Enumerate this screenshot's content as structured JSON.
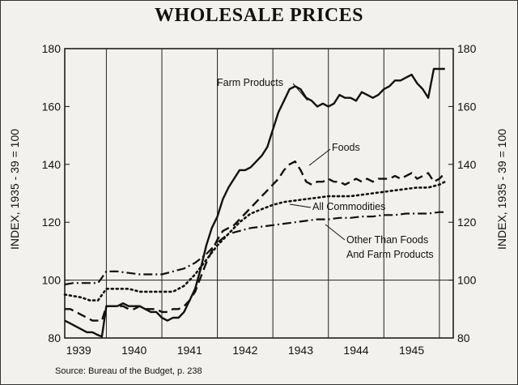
{
  "page_title": "WHOLESALE PRICES",
  "y_axis_label_left": "INDEX, 1935 - 39 = 100",
  "y_axis_label_right": "INDEX, 1935 - 39 = 100",
  "source": "Source: Bureau of the Budget, p. 238",
  "chart_data": {
    "type": "line",
    "title": "WHOLESALE PRICES",
    "xlabel": "",
    "ylabel": "INDEX, 1935 - 39 = 100",
    "ylim": [
      80,
      180
    ],
    "xlim": [
      1938.75,
      1945.75
    ],
    "yticks": [
      80,
      100,
      120,
      140,
      160,
      180
    ],
    "xtick_labels": [
      "1939",
      "1940",
      "1941",
      "1942",
      "1943",
      "1944",
      "1945"
    ],
    "grid": "vertical lines at year boundaries; horizontal line at 100",
    "legend": "inline annotations with leader lines",
    "series": [
      {
        "name": "Farm Products",
        "style": "solid",
        "x": [
          1938.75,
          1938.85,
          1938.95,
          1939.05,
          1939.15,
          1939.25,
          1939.35,
          1939.42,
          1939.5,
          1939.6,
          1939.7,
          1939.8,
          1939.9,
          1940.0,
          1940.1,
          1940.2,
          1940.3,
          1940.4,
          1940.5,
          1940.6,
          1940.7,
          1940.8,
          1940.9,
          1941.0,
          1941.1,
          1941.2,
          1941.3,
          1941.4,
          1941.5,
          1941.6,
          1941.7,
          1941.8,
          1941.9,
          1942.0,
          1942.1,
          1942.2,
          1942.3,
          1942.4,
          1942.5,
          1942.6,
          1942.7,
          1942.8,
          1942.9,
          1943.0,
          1943.1,
          1943.2,
          1943.3,
          1943.4,
          1943.5,
          1943.6,
          1943.7,
          1943.8,
          1943.9,
          1944.0,
          1944.1,
          1944.2,
          1944.3,
          1944.4,
          1944.5,
          1944.6,
          1944.7,
          1944.8,
          1944.9,
          1945.0,
          1945.1,
          1945.2,
          1945.3,
          1945.4,
          1945.5,
          1945.6
        ],
        "values": [
          86,
          85,
          84,
          83,
          82,
          82,
          81,
          80.5,
          91,
          91,
          91,
          92,
          91,
          91,
          91,
          90,
          89,
          89,
          87,
          86,
          87,
          87,
          89,
          93,
          97,
          104,
          112,
          118,
          122,
          128,
          132,
          135,
          138,
          138,
          139,
          141,
          143,
          146,
          152,
          158,
          162,
          166,
          167,
          166,
          163,
          162,
          160,
          161,
          160,
          161,
          164,
          163,
          163,
          162,
          165,
          164,
          163,
          164,
          166,
          167,
          169,
          169,
          170,
          171,
          168,
          166,
          163,
          173,
          173,
          173
        ]
      },
      {
        "name": "Foods",
        "style": "dashed",
        "x": [
          1938.75,
          1938.85,
          1938.95,
          1939.05,
          1939.15,
          1939.25,
          1939.35,
          1939.42,
          1939.5,
          1939.6,
          1939.7,
          1939.8,
          1939.9,
          1940.0,
          1940.1,
          1940.2,
          1940.3,
          1940.4,
          1940.5,
          1940.6,
          1940.7,
          1940.8,
          1940.9,
          1941.0,
          1941.1,
          1941.2,
          1941.3,
          1941.4,
          1941.5,
          1941.6,
          1941.7,
          1941.8,
          1941.9,
          1942.0,
          1942.1,
          1942.2,
          1942.3,
          1942.4,
          1942.5,
          1942.6,
          1942.7,
          1942.8,
          1942.9,
          1943.0,
          1943.1,
          1943.2,
          1943.3,
          1943.4,
          1943.5,
          1943.6,
          1943.7,
          1943.8,
          1943.9,
          1944.0,
          1944.1,
          1944.2,
          1944.3,
          1944.4,
          1944.5,
          1944.6,
          1944.7,
          1944.8,
          1944.9,
          1945.0,
          1945.1,
          1945.2,
          1945.3,
          1945.4,
          1945.5,
          1945.6
        ],
        "values": [
          90,
          90,
          89,
          88,
          87,
          86,
          86,
          86,
          91,
          91,
          91,
          91,
          90,
          90,
          91,
          90,
          90,
          90,
          89,
          89,
          90,
          90,
          91,
          93,
          96,
          101,
          106,
          110,
          114,
          117,
          118,
          119,
          121,
          123,
          125,
          127,
          129,
          131,
          133,
          135,
          138,
          140,
          141,
          138,
          134,
          133,
          134,
          134,
          135,
          134,
          134,
          133,
          134,
          135,
          134,
          135,
          134,
          135,
          135,
          135,
          136,
          135,
          136,
          137,
          135,
          136,
          137,
          134,
          135,
          137
        ]
      },
      {
        "name": "All Commodities",
        "style": "dotted",
        "x": [
          1938.75,
          1938.9,
          1939.05,
          1939.2,
          1939.35,
          1939.5,
          1939.7,
          1939.9,
          1940.1,
          1940.3,
          1940.5,
          1940.7,
          1940.9,
          1941.1,
          1941.3,
          1941.5,
          1941.7,
          1941.9,
          1942.1,
          1942.3,
          1942.5,
          1942.7,
          1942.9,
          1943.1,
          1943.3,
          1943.5,
          1943.7,
          1943.9,
          1944.1,
          1944.3,
          1944.5,
          1944.7,
          1944.9,
          1945.1,
          1945.3,
          1945.5,
          1945.6
        ],
        "values": [
          95,
          94.5,
          94,
          93,
          93,
          97,
          97,
          97,
          96,
          96,
          96,
          96,
          98,
          102,
          107,
          112,
          116,
          120,
          123,
          124.5,
          126,
          127,
          127.5,
          128,
          128.5,
          129,
          129,
          129,
          129.5,
          130,
          130.5,
          131,
          131.5,
          132,
          132,
          133,
          134
        ]
      },
      {
        "name": "Other Than Foods And Farm Products",
        "style": "dash-dot",
        "x": [
          1938.75,
          1938.9,
          1939.05,
          1939.2,
          1939.35,
          1939.5,
          1939.7,
          1939.9,
          1940.1,
          1940.3,
          1940.5,
          1940.7,
          1940.9,
          1941.1,
          1941.3,
          1941.5,
          1941.7,
          1941.9,
          1942.1,
          1942.3,
          1942.5,
          1942.7,
          1942.9,
          1943.1,
          1943.3,
          1943.5,
          1943.7,
          1943.9,
          1944.1,
          1944.3,
          1944.5,
          1944.7,
          1944.9,
          1945.1,
          1945.3,
          1945.5,
          1945.6
        ],
        "values": [
          98.5,
          99,
          99,
          99,
          99,
          103,
          103,
          102.5,
          102,
          102,
          102,
          103,
          104,
          106,
          109,
          113,
          116,
          117,
          118,
          118.5,
          119,
          119.5,
          120,
          120.5,
          121,
          121,
          121.5,
          121.5,
          122,
          122,
          122.5,
          122.5,
          123,
          123,
          123,
          123.5,
          123.5
        ]
      }
    ],
    "annotations": [
      {
        "text": "Farm Products",
        "series": 0
      },
      {
        "text": "Foods",
        "series": 1
      },
      {
        "text": "All Commodities",
        "series": 2
      },
      {
        "text": "Other Than Foods",
        "series": 3
      },
      {
        "text": "And Farm Products",
        "series": 3
      }
    ]
  }
}
